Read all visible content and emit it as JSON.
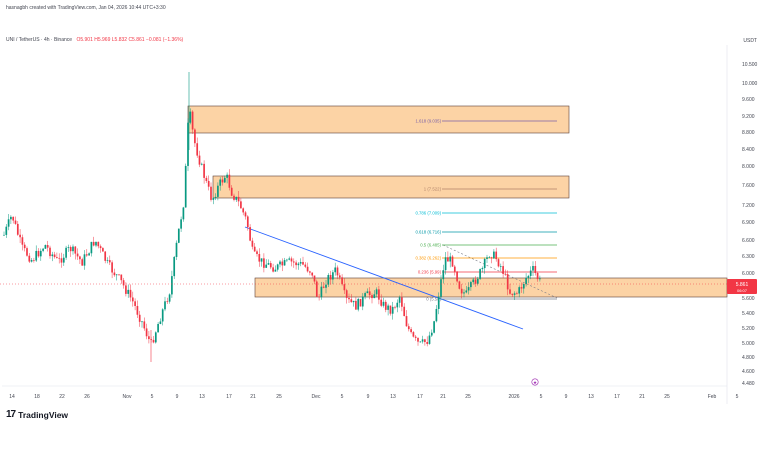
{
  "header": {
    "title": "hasnagbh created with TradingView.com, Jan 04, 2026 10:44 UTC+3:30"
  },
  "symbol": {
    "name": "UNI / TetherUS · 4h · Binance",
    "ohlc": "O5.901 H5.969 L5.832 C5.861 −0.081 (−1.36%)"
  },
  "currency": "USDT",
  "price_tag": {
    "value": "5.861",
    "sub": "06:07",
    "color": "#f23645"
  },
  "y_ticks": [
    "10.500",
    "10.000",
    "9.600",
    "9.200",
    "8.800",
    "8.400",
    "8.000",
    "7.600",
    "7.200",
    "6.900",
    "6.600",
    "6.300",
    "6.000",
    "5.600",
    "5.400",
    "5.200",
    "5.000",
    "4.800",
    "4.600",
    "4.480"
  ],
  "x_ticks": [
    "14",
    "18",
    "22",
    "26",
    "Nov",
    "5",
    "9",
    "13",
    "17",
    "21",
    "25",
    "Dec",
    "5",
    "9",
    "13",
    "17",
    "21",
    "25",
    "2026",
    "5",
    "9",
    "13",
    "17",
    "21",
    "25",
    "Feb",
    "5"
  ],
  "fib_levels": [
    {
      "label": "1.618 (9.035)",
      "color": "#7b61a8"
    },
    {
      "label": "1 (7.522)",
      "color": "#b0826a"
    },
    {
      "label": "0.786 (7.009)",
      "color": "#00bcd4"
    },
    {
      "label": "0.618 (6.716)",
      "color": "#0097a7"
    },
    {
      "label": "0.5 (6.485)",
      "color": "#4caf50"
    },
    {
      "label": "0.382 (6.262)",
      "color": "#ff9800"
    },
    {
      "label": "0.236 (5.99)",
      "color": "#f23645"
    },
    {
      "label": "0 (5.58)",
      "color": "#787b86"
    }
  ],
  "colors": {
    "up": "#089981",
    "down": "#f23645",
    "zone_fill": "#fcd3a5",
    "trendline": "#2962ff"
  },
  "brand": {
    "name": "TradingView",
    "mark": "17"
  },
  "chart_data": {
    "type": "candlestick",
    "x": [
      "14",
      "18",
      "22",
      "26",
      "Nov",
      "5",
      "9",
      "13",
      "17",
      "21",
      "25",
      "Dec",
      "5",
      "9",
      "13",
      "17",
      "21",
      "25",
      "2026",
      "5"
    ],
    "close_approx": [
      6.5,
      6.2,
      6.0,
      6.1,
      5.6,
      5.3,
      9.5,
      7.9,
      7.5,
      6.3,
      6.0,
      5.9,
      5.5,
      5.2,
      5.1,
      5.8,
      6.3,
      6.1,
      6.0,
      5.86
    ],
    "ylim": [
      4.48,
      10.8
    ]
  }
}
